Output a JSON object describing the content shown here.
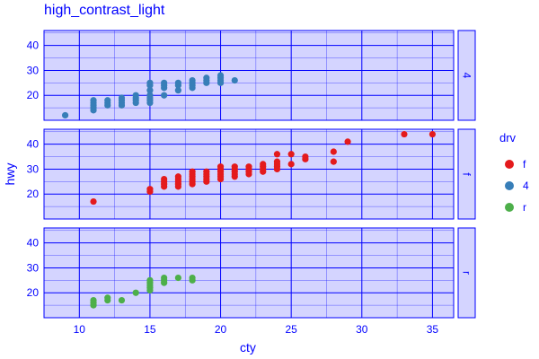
{
  "chart_data": {
    "type": "scatter",
    "title": "high_contrast_light",
    "xlabel": "cty",
    "ylabel": "hwy",
    "xlim": [
      7.5,
      36.5
    ],
    "ylim": [
      10,
      46
    ],
    "x_ticks": [
      10,
      15,
      20,
      25,
      30,
      35
    ],
    "y_ticks": [
      20,
      30,
      40
    ],
    "grid": true,
    "facet_by": "drv",
    "legend": {
      "title": "drv",
      "placement": "right",
      "entries": [
        {
          "label": "f",
          "color": "#e41a1c"
        },
        {
          "label": "4",
          "color": "#377eb8"
        },
        {
          "label": "r",
          "color": "#4daf4a"
        }
      ]
    },
    "facets": [
      {
        "label": "4",
        "color": "#377eb8",
        "points": [
          [
            9,
            12
          ],
          [
            11,
            14
          ],
          [
            11,
            15
          ],
          [
            11,
            16
          ],
          [
            11,
            17
          ],
          [
            11,
            18
          ],
          [
            12,
            16
          ],
          [
            12,
            17
          ],
          [
            12,
            18
          ],
          [
            13,
            16
          ],
          [
            13,
            17
          ],
          [
            13,
            18
          ],
          [
            13,
            19
          ],
          [
            14,
            17
          ],
          [
            14,
            18
          ],
          [
            14,
            19
          ],
          [
            14,
            20
          ],
          [
            15,
            17
          ],
          [
            15,
            18
          ],
          [
            15,
            19
          ],
          [
            15,
            20
          ],
          [
            15,
            22
          ],
          [
            15,
            24
          ],
          [
            15,
            25
          ],
          [
            16,
            20
          ],
          [
            16,
            23
          ],
          [
            16,
            24
          ],
          [
            16,
            25
          ],
          [
            17,
            22
          ],
          [
            17,
            24
          ],
          [
            17,
            25
          ],
          [
            18,
            23
          ],
          [
            18,
            24
          ],
          [
            18,
            25
          ],
          [
            18,
            26
          ],
          [
            19,
            25
          ],
          [
            19,
            26
          ],
          [
            19,
            27
          ],
          [
            20,
            25
          ],
          [
            20,
            26
          ],
          [
            20,
            27
          ],
          [
            20,
            28
          ],
          [
            21,
            26
          ]
        ]
      },
      {
        "label": "f",
        "color": "#e41a1c",
        "points": [
          [
            11,
            17
          ],
          [
            15,
            21
          ],
          [
            15,
            22
          ],
          [
            16,
            23
          ],
          [
            16,
            24
          ],
          [
            16,
            25
          ],
          [
            16,
            26
          ],
          [
            17,
            23
          ],
          [
            17,
            24
          ],
          [
            17,
            25
          ],
          [
            17,
            26
          ],
          [
            17,
            27
          ],
          [
            18,
            24
          ],
          [
            18,
            25
          ],
          [
            18,
            26
          ],
          [
            18,
            27
          ],
          [
            18,
            28
          ],
          [
            18,
            29
          ],
          [
            19,
            25
          ],
          [
            19,
            26
          ],
          [
            19,
            27
          ],
          [
            19,
            28
          ],
          [
            19,
            29
          ],
          [
            20,
            26
          ],
          [
            20,
            27
          ],
          [
            20,
            28
          ],
          [
            20,
            29
          ],
          [
            20,
            30
          ],
          [
            20,
            31
          ],
          [
            21,
            27
          ],
          [
            21,
            28
          ],
          [
            21,
            29
          ],
          [
            21,
            30
          ],
          [
            21,
            31
          ],
          [
            22,
            28
          ],
          [
            22,
            29
          ],
          [
            22,
            30
          ],
          [
            22,
            31
          ],
          [
            23,
            29
          ],
          [
            23,
            30
          ],
          [
            23,
            31
          ],
          [
            23,
            32
          ],
          [
            24,
            30
          ],
          [
            24,
            31
          ],
          [
            24,
            32
          ],
          [
            24,
            33
          ],
          [
            24,
            36
          ],
          [
            25,
            32
          ],
          [
            25,
            36
          ],
          [
            26,
            34
          ],
          [
            26,
            35
          ],
          [
            28,
            33
          ],
          [
            28,
            37
          ],
          [
            29,
            41
          ],
          [
            33,
            44
          ],
          [
            35,
            44
          ]
        ]
      },
      {
        "label": "r",
        "color": "#4daf4a",
        "points": [
          [
            11,
            15
          ],
          [
            11,
            16
          ],
          [
            11,
            17
          ],
          [
            12,
            17
          ],
          [
            12,
            18
          ],
          [
            13,
            17
          ],
          [
            14,
            20
          ],
          [
            15,
            21
          ],
          [
            15,
            22
          ],
          [
            15,
            23
          ],
          [
            15,
            24
          ],
          [
            15,
            25
          ],
          [
            16,
            24
          ],
          [
            16,
            25
          ],
          [
            16,
            26
          ],
          [
            17,
            26
          ],
          [
            18,
            25
          ],
          [
            18,
            26
          ]
        ]
      }
    ]
  }
}
